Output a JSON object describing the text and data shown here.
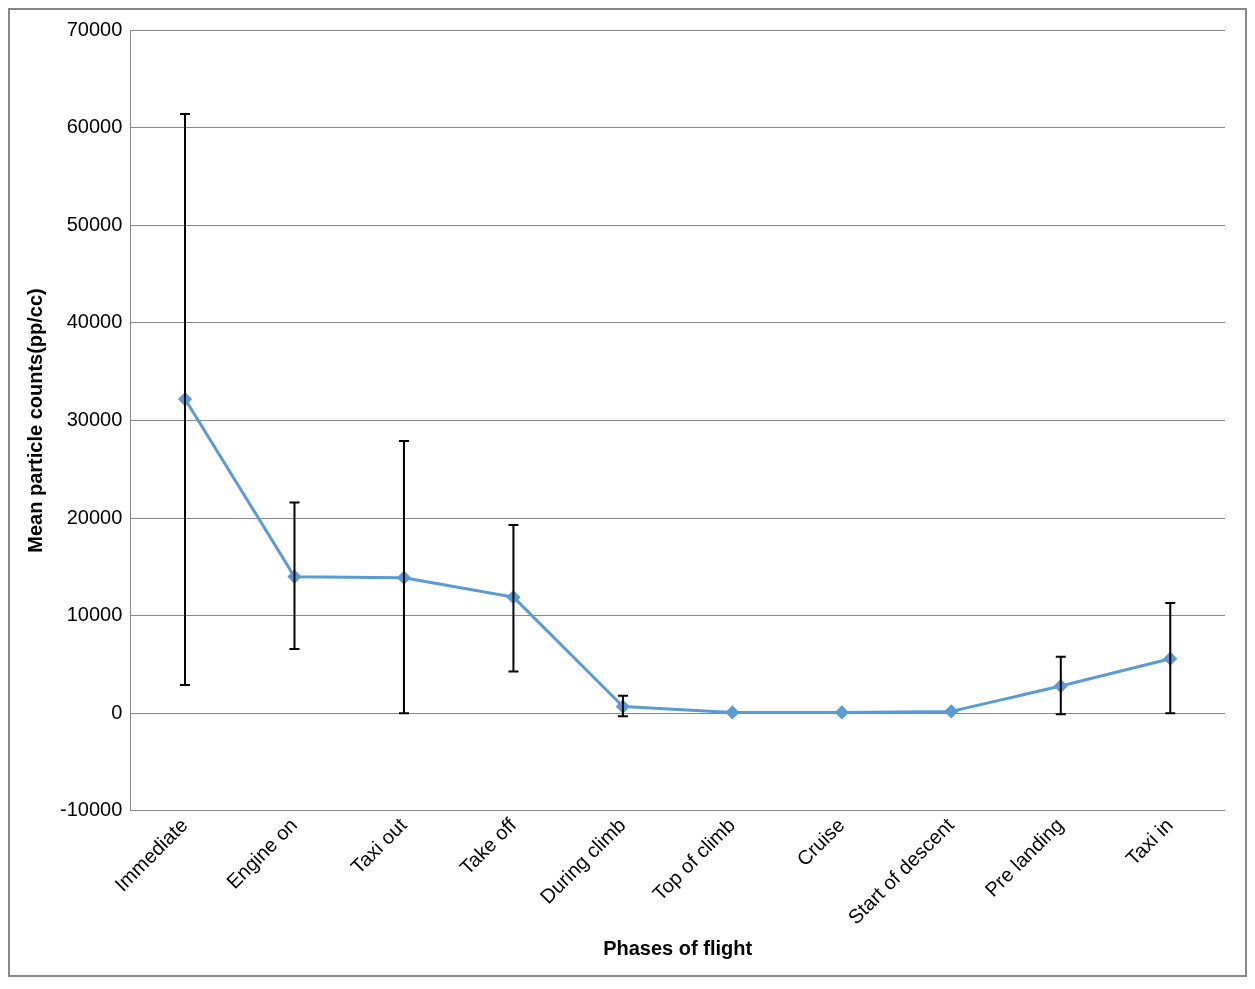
{
  "chart_data": {
    "type": "line",
    "xlabel": "Phases of flight",
    "ylabel": "Mean particle counts(pp/cc)",
    "categories": [
      "Immediate",
      "Engine on",
      "Taxi out",
      "Take off",
      "During climb",
      "Top of climb",
      "Cruise",
      "Start of descent",
      "Pre landing",
      "Taxi in"
    ],
    "series": [
      {
        "color": "#5b9bd5",
        "values": [
          32200,
          14000,
          13900,
          11900,
          700,
          100,
          100,
          200,
          2800,
          5600
        ],
        "errors": [
          [
            2900,
            61400
          ],
          [
            6600,
            21600
          ],
          [
            0,
            27900
          ],
          [
            4300,
            19300
          ],
          [
            -300,
            1800
          ],
          null,
          null,
          null,
          [
            -100,
            5800
          ],
          [
            0,
            11300
          ]
        ]
      }
    ],
    "ylim": [
      -10000,
      70000
    ],
    "yticks": [
      -10000,
      0,
      10000,
      20000,
      30000,
      40000,
      50000,
      60000,
      70000
    ],
    "grid": "y",
    "legend": false,
    "marker": "diamond",
    "line_style": "solid"
  }
}
